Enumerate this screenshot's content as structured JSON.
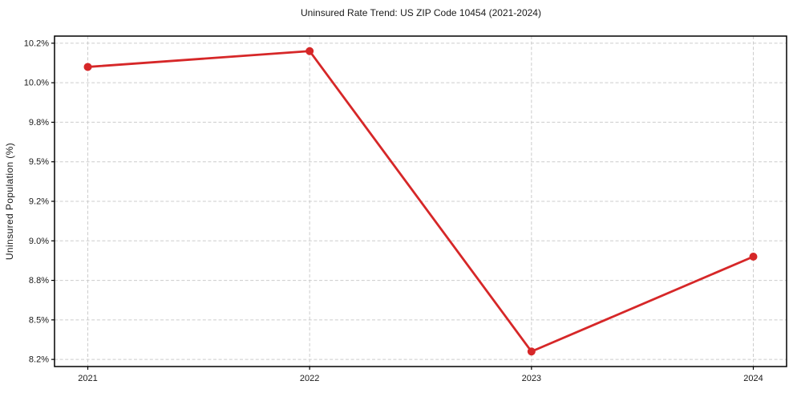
{
  "chart_data": {
    "type": "line",
    "title": "Uninsured Rate Trend: US ZIP Code 10454 (2021-2024)",
    "xlabel": "",
    "ylabel": "Uninsured Population (%)",
    "x": [
      2021,
      2022,
      2023,
      2024
    ],
    "series": [
      {
        "name": "Uninsured Rate",
        "values": [
          10.1,
          10.2,
          8.3,
          8.9
        ],
        "color": "#d62728",
        "marker": "circle"
      }
    ],
    "xlim": [
      2020.85,
      2024.15
    ],
    "ylim": [
      8.205,
      10.295
    ],
    "x_ticks": {
      "values": [
        2021,
        2022,
        2023,
        2024
      ],
      "labels": [
        "2021",
        "2022",
        "2023",
        "2024"
      ]
    },
    "y_ticks": {
      "values": [
        8.25,
        8.5,
        8.75,
        9.0,
        9.25,
        9.5,
        9.75,
        10.0,
        10.25
      ],
      "labels": [
        "8.2%",
        "8.5%",
        "8.8%",
        "9.0%",
        "9.2%",
        "9.5%",
        "9.8%",
        "10.0%",
        "10.2%"
      ]
    },
    "grid": {
      "on": true,
      "color": "#cccccc",
      "dash": "4 2.6"
    },
    "frame_color": "#000000",
    "tick_color": "#000000",
    "text_color": "#1a1a1a",
    "background": "#ffffff",
    "legend": null
  }
}
